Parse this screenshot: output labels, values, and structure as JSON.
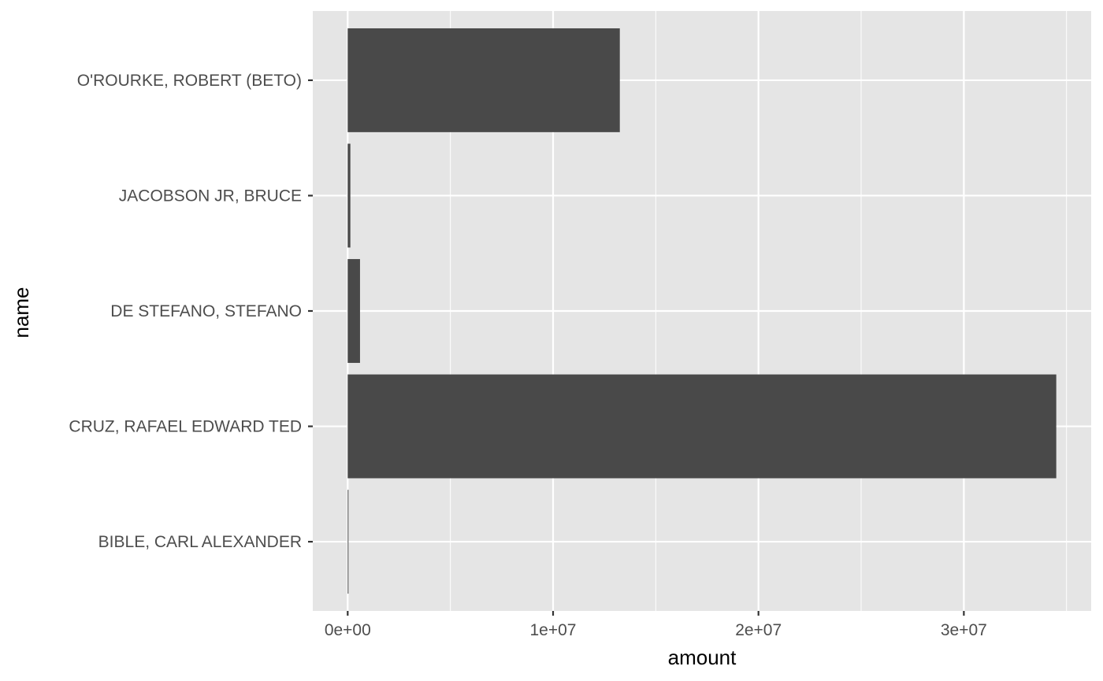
{
  "chart_data": {
    "type": "bar",
    "orientation": "horizontal",
    "categories": [
      "BIBLE, CARL ALEXANDER",
      "CRUZ, RAFAEL EDWARD TED",
      "DE STEFANO, STEFANO",
      "JACOBSON JR, BRUCE",
      "O'ROURKE, ROBERT (BETO)"
    ],
    "values": [
      10000,
      34500000,
      600000,
      130000,
      13250000
    ],
    "xlabel": "amount",
    "ylabel": "name",
    "xlim": [
      -1700000,
      36200000
    ],
    "x_ticks": [
      0,
      10000000,
      20000000,
      30000000
    ],
    "x_tick_labels": [
      "0e+00",
      "1e+07",
      "2e+07",
      "3e+07"
    ],
    "grid": true,
    "colors": {
      "panel_background": "#e5e5e5",
      "grid": "#ffffff",
      "bar_fill": "#494949",
      "tick_text": "#4d4d4d",
      "tick_mark": "#333333"
    }
  }
}
